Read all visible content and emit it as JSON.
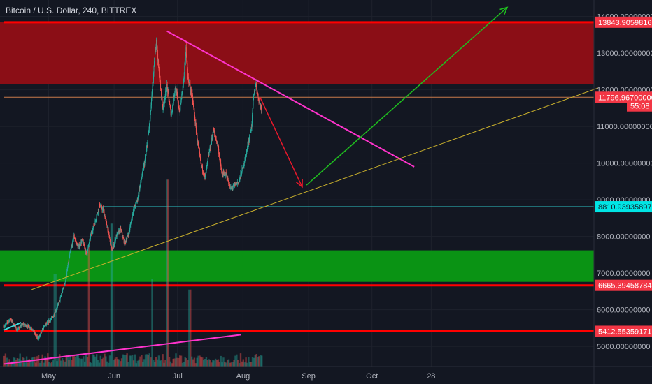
{
  "header": {
    "title": "Bitcoin / U.S. Dollar, 240, BITTREX"
  },
  "chart_data": {
    "type": "candlestick",
    "symbol": "Bitcoin / U.S. Dollar",
    "interval": "240",
    "exchange": "BITTREX",
    "ylim": [
      4450,
      14450
    ],
    "y_ticks": [
      5000,
      6000,
      7000,
      8000,
      9000,
      10000,
      11000,
      12000,
      13000,
      14000
    ],
    "y_tick_labels": [
      "5000.00000000",
      "6000.00000000",
      "7000.00000000",
      "8000.00000000",
      "9000.00000000",
      "10000.00000000",
      "11000.00000000",
      "12000.00000000",
      "13000.00000000",
      "14000.00000000"
    ],
    "x_ticks": [
      {
        "day": 30,
        "label": "May"
      },
      {
        "day": 61,
        "label": "Jun"
      },
      {
        "day": 91,
        "label": "Jul"
      },
      {
        "day": 122,
        "label": "Aug"
      },
      {
        "day": 153,
        "label": "Sep"
      },
      {
        "day": 183,
        "label": "Oct"
      },
      {
        "day": 211,
        "label": "28"
      }
    ],
    "x_domain": [
      9,
      290
    ],
    "price_markers": [
      {
        "value": 13843.90598161,
        "label": "13843.90598161",
        "color": "#f23645",
        "text_color": "#ffffff"
      },
      {
        "value": 11796.967,
        "label": "11796.96700000",
        "color": "#f23645",
        "text_color": "#ffffff"
      },
      {
        "value": 8810.93935897,
        "label": "8810.93935897",
        "color": "#00e5e5",
        "text_color": "#131722"
      },
      {
        "value": 6665.39458784,
        "label": "6665.39458784",
        "color": "#f23645",
        "text_color": "#ffffff"
      },
      {
        "value": 5412.55359171,
        "label": "5412.55359171",
        "color": "#f23645",
        "text_color": "#ffffff"
      }
    ],
    "countdown": {
      "value": 11560,
      "label": "55:08",
      "color": "#f23645"
    },
    "zones": [
      {
        "name": "resistance",
        "y1": 12150,
        "y2": 13843.9,
        "color": "#8b0e16"
      },
      {
        "name": "support",
        "y1": 6760,
        "y2": 7620,
        "color": "#0a9314"
      }
    ],
    "hlines": [
      {
        "value": 13843.9,
        "color": "#ff0000",
        "x_from": 9,
        "x_to": 290,
        "width": 3
      },
      {
        "value": 11796.97,
        "color": "#c97a4a",
        "x_from": 9,
        "x_to": 290,
        "width": 1
      },
      {
        "value": 8810.94,
        "color": "#2ec5c5",
        "x_from": 55,
        "x_to": 290,
        "width": 1
      },
      {
        "value": 6665.39,
        "color": "#ff0000",
        "x_from": 9,
        "x_to": 290,
        "width": 3
      },
      {
        "value": 5412.55,
        "color": "#ff0000",
        "x_from": 9,
        "x_to": 290,
        "width": 3
      }
    ],
    "lines": [
      {
        "name": "downtrend",
        "from": [
          86,
          13600
        ],
        "to": [
          203,
          9900
        ],
        "color": "#ff33cc",
        "width": 2,
        "arrow": false
      },
      {
        "name": "volume-uptrend",
        "from": [
          9,
          4520
        ],
        "to": [
          121,
          5320
        ],
        "color": "#ff33cc",
        "width": 2,
        "arrow": false
      },
      {
        "name": "rising-support",
        "from": [
          22,
          6550
        ],
        "to": [
          290,
          12050
        ],
        "color": "#c9b02c",
        "width": 1,
        "arrow": false
      },
      {
        "name": "teal-short",
        "from": [
          9,
          5450
        ],
        "to": [
          17,
          5650
        ],
        "color": "#3ee0e0",
        "width": 2,
        "arrow": false
      },
      {
        "name": "drop-arrow",
        "from": [
          130,
          11800
        ],
        "to": [
          150,
          9350
        ],
        "color": "#e8182b",
        "width": 1.5,
        "arrow": true
      },
      {
        "name": "breakout-arrow",
        "from": [
          152,
          9400
        ],
        "to": [
          247,
          14250
        ],
        "color": "#1fbf1f",
        "width": 1.5,
        "arrow": true
      }
    ],
    "price_path": [
      [
        9,
        5550
      ],
      [
        12,
        5750
      ],
      [
        15,
        5450
      ],
      [
        18,
        5600
      ],
      [
        22,
        5500
      ],
      [
        25,
        5200
      ],
      [
        28,
        5550
      ],
      [
        32,
        5800
      ],
      [
        35,
        6200
      ],
      [
        38,
        6800
      ],
      [
        40,
        7500
      ],
      [
        42,
        8000
      ],
      [
        44,
        7700
      ],
      [
        46,
        7900
      ],
      [
        48,
        7500
      ],
      [
        50,
        8050
      ],
      [
        52,
        8400
      ],
      [
        54,
        8850
      ],
      [
        56,
        8700
      ],
      [
        58,
        8200
      ],
      [
        60,
        7600
      ],
      [
        62,
        8000
      ],
      [
        64,
        8200
      ],
      [
        66,
        7800
      ],
      [
        68,
        8100
      ],
      [
        70,
        8700
      ],
      [
        72,
        9000
      ],
      [
        74,
        9600
      ],
      [
        76,
        10200
      ],
      [
        78,
        11200
      ],
      [
        80,
        12700
      ],
      [
        81,
        13400
      ],
      [
        82,
        12600
      ],
      [
        84,
        11500
      ],
      [
        86,
        12100
      ],
      [
        88,
        11300
      ],
      [
        90,
        12100
      ],
      [
        92,
        11400
      ],
      [
        94,
        12300
      ],
      [
        95,
        13100
      ],
      [
        96,
        12300
      ],
      [
        98,
        11800
      ],
      [
        100,
        10800
      ],
      [
        102,
        10000
      ],
      [
        104,
        9600
      ],
      [
        106,
        10300
      ],
      [
        108,
        10900
      ],
      [
        110,
        10500
      ],
      [
        112,
        9700
      ],
      [
        114,
        9700
      ],
      [
        116,
        9300
      ],
      [
        118,
        9400
      ],
      [
        120,
        9500
      ],
      [
        122,
        9900
      ],
      [
        124,
        10400
      ],
      [
        126,
        11000
      ],
      [
        127,
        11800
      ],
      [
        128,
        12200
      ],
      [
        129,
        11850
      ],
      [
        130,
        11600
      ],
      [
        131,
        11450
      ]
    ],
    "volume": {
      "baseline_price": 4450,
      "bars_per_unit": 1.6,
      "max_height_price": 1500,
      "spikes": [
        [
          60,
          0.65
        ],
        [
          49,
          0.55
        ],
        [
          86,
          0.85
        ],
        [
          97,
          0.35
        ],
        [
          33,
          0.42
        ],
        [
          79,
          0.4
        ]
      ]
    },
    "colors": {
      "background": "#131722",
      "grid": "#1e222d",
      "axis_text": "#b2b5be",
      "candle_up": "#26a69a",
      "candle_down": "#ef5350"
    }
  }
}
